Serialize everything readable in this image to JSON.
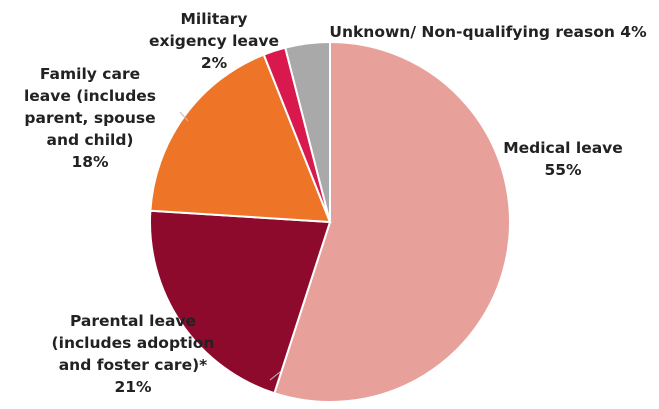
{
  "chart_data": {
    "type": "pie",
    "title": "",
    "start_angle_deg": 0,
    "direction": "clockwise",
    "slices": [
      {
        "label_lines": [
          "Medical leave"
        ],
        "value_label": "55%",
        "value": 55,
        "color": "#E8A09B"
      },
      {
        "label_lines": [
          "Parental leave",
          "(includes adoption",
          "and foster care)*"
        ],
        "value_label": "21%",
        "value": 21,
        "color": "#8E0A2C"
      },
      {
        "label_lines": [
          "Family care",
          "leave (includes",
          "parent, spouse",
          "and child)"
        ],
        "value_label": "18%",
        "value": 18,
        "color": "#EE7427"
      },
      {
        "label_lines": [
          "Military",
          "exigency leave"
        ],
        "value_label": "2%",
        "value": 2,
        "color": "#D9184E"
      },
      {
        "label_lines": [
          "Unknown/ Non-qualifying reason 4%"
        ],
        "value_label": "",
        "value": 4,
        "color": "#A9A9A9"
      }
    ]
  }
}
